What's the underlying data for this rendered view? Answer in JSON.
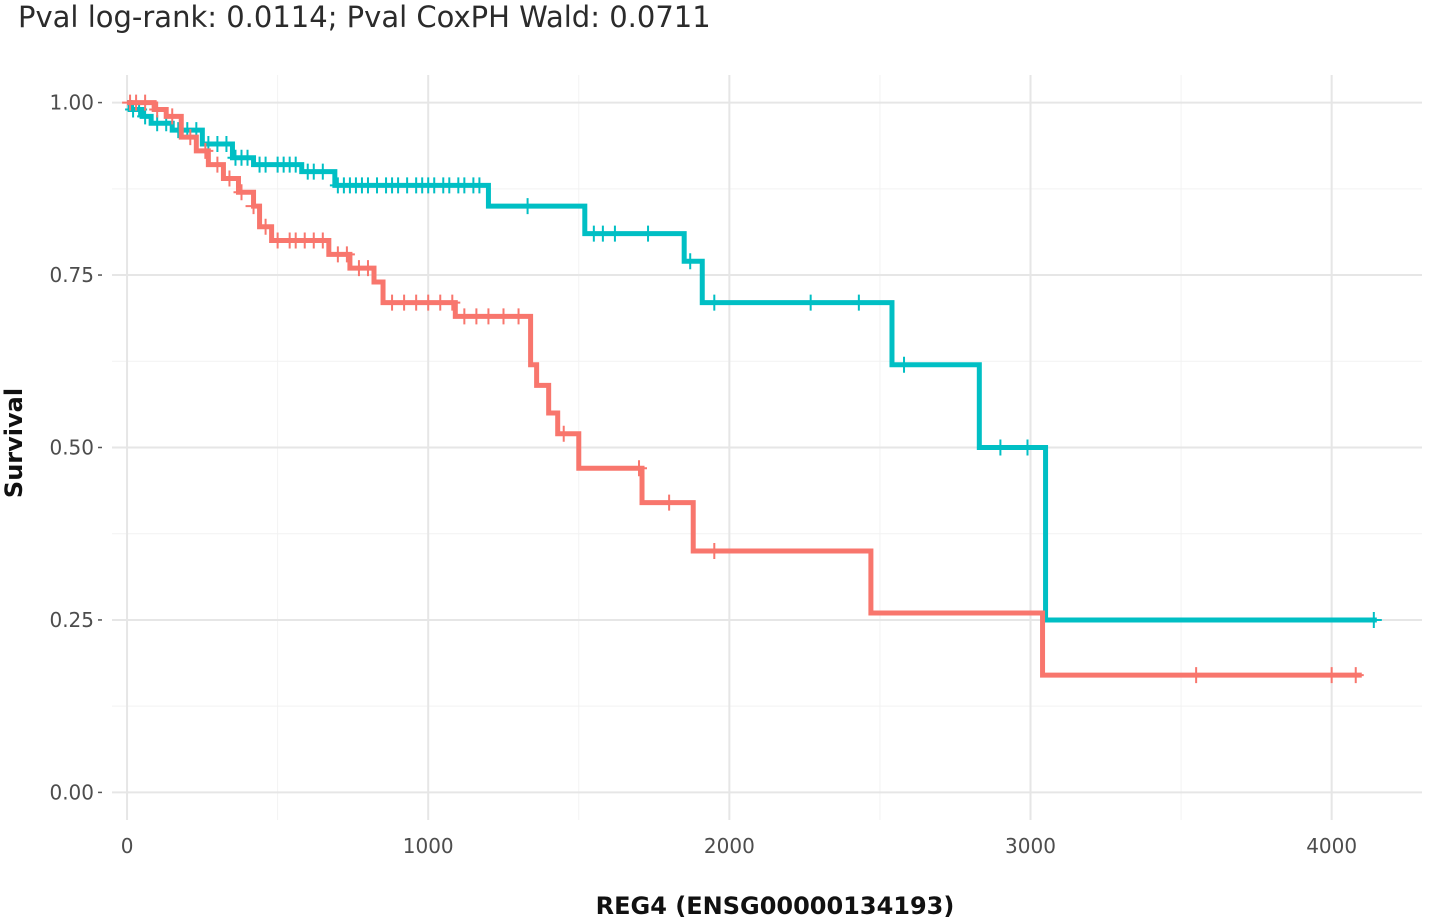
{
  "title": "Pval log-rank: 0.0114; Pval CoxPH Wald: 0.0711",
  "chart_data": {
    "type": "line",
    "step": true,
    "title": "Pval log-rank: 0.0114; Pval CoxPH Wald: 0.0711",
    "xlabel": "REG4 (ENSG00000134193)",
    "ylabel": "Survival",
    "xlim": [
      -50,
      4300
    ],
    "ylim": [
      -0.04,
      1.04
    ],
    "xticks": [
      0,
      1000,
      2000,
      3000,
      4000
    ],
    "xtick_labels": [
      "0",
      "1000",
      "2000",
      "3000",
      "4000"
    ],
    "yticks": [
      0,
      0.25,
      0.5,
      0.75,
      1.0
    ],
    "ytick_labels": [
      "0.00",
      "0.25",
      "0.50",
      "0.75",
      "1.00"
    ],
    "grid": true,
    "legend": "none",
    "series": [
      {
        "color": "#00BFC4",
        "steps": [
          [
            0,
            1.0
          ],
          [
            10,
            0.99
          ],
          [
            50,
            0.98
          ],
          [
            80,
            0.97
          ],
          [
            150,
            0.96
          ],
          [
            250,
            0.94
          ],
          [
            350,
            0.92
          ],
          [
            420,
            0.91
          ],
          [
            580,
            0.9
          ],
          [
            690,
            0.88
          ],
          [
            1200,
            0.85
          ],
          [
            1520,
            0.81
          ],
          [
            1850,
            0.77
          ],
          [
            1910,
            0.71
          ],
          [
            2540,
            0.62
          ],
          [
            2830,
            0.5
          ],
          [
            3050,
            0.25
          ],
          [
            4150,
            0.25
          ]
        ],
        "censor": [
          20,
          40,
          60,
          100,
          130,
          170,
          200,
          230,
          270,
          300,
          330,
          360,
          380,
          400,
          440,
          460,
          500,
          520,
          540,
          560,
          600,
          620,
          650,
          700,
          720,
          740,
          760,
          780,
          800,
          830,
          860,
          880,
          900,
          930,
          960,
          980,
          1000,
          1020,
          1050,
          1070,
          1100,
          1120,
          1150,
          1170,
          1330,
          1550,
          1580,
          1620,
          1730,
          1870,
          1950,
          2270,
          2430,
          2580,
          2900,
          2990,
          4140
        ]
      },
      {
        "color": "#F8766D",
        "steps": [
          [
            0,
            1.0
          ],
          [
            90,
            0.99
          ],
          [
            130,
            0.98
          ],
          [
            180,
            0.95
          ],
          [
            230,
            0.93
          ],
          [
            270,
            0.91
          ],
          [
            320,
            0.89
          ],
          [
            370,
            0.87
          ],
          [
            420,
            0.85
          ],
          [
            440,
            0.82
          ],
          [
            480,
            0.8
          ],
          [
            670,
            0.78
          ],
          [
            740,
            0.76
          ],
          [
            820,
            0.74
          ],
          [
            850,
            0.71
          ],
          [
            1090,
            0.69
          ],
          [
            1340,
            0.62
          ],
          [
            1360,
            0.59
          ],
          [
            1400,
            0.55
          ],
          [
            1430,
            0.52
          ],
          [
            1500,
            0.47
          ],
          [
            1710,
            0.42
          ],
          [
            1880,
            0.35
          ],
          [
            2470,
            0.26
          ],
          [
            3040,
            0.17
          ],
          [
            4100,
            0.17
          ]
        ],
        "censor": [
          10,
          30,
          60,
          100,
          150,
          210,
          260,
          300,
          340,
          380,
          420,
          460,
          500,
          540,
          560,
          590,
          620,
          650,
          700,
          730,
          770,
          800,
          880,
          920,
          960,
          1000,
          1040,
          1080,
          1120,
          1160,
          1200,
          1250,
          1300,
          1450,
          1700,
          1800,
          1950,
          3550,
          4000,
          4080
        ]
      }
    ]
  }
}
